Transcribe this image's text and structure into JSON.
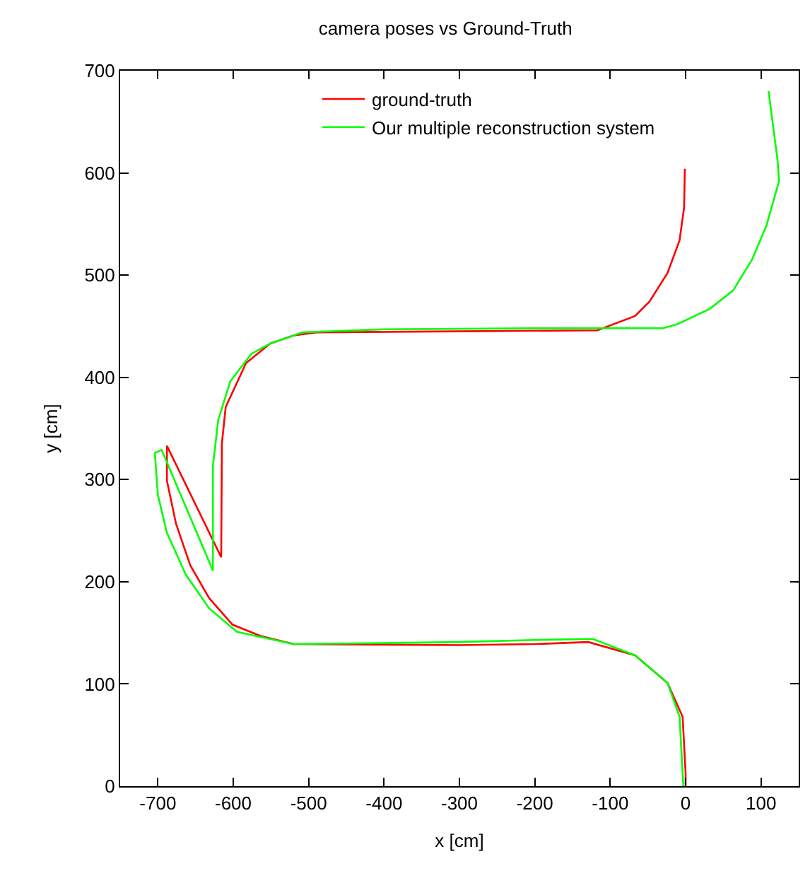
{
  "chart_data": {
    "type": "line",
    "title": "camera poses vs Ground-Truth",
    "xlabel": "x [cm]",
    "ylabel": "y [cm]",
    "xlim": [
      -750,
      150
    ],
    "xticks": [
      -700,
      -600,
      -500,
      -400,
      -300,
      -200,
      -100,
      0,
      100
    ],
    "ylim": [
      0,
      700
    ],
    "yticks": [
      0,
      100,
      200,
      300,
      400,
      500,
      600,
      700
    ],
    "legend": "top right",
    "marker": "none",
    "line_style": "solid",
    "series": [
      {
        "name": "ground-truth",
        "color": "#ff0000",
        "x": [
          -1,
          -2,
          -8,
          -24,
          -48,
          -67,
          -117,
          -300,
          -490,
          -520,
          -551,
          -583,
          -610,
          -615,
          -616,
          -688,
          -688,
          -676,
          -657,
          -632,
          -601,
          -564,
          -520,
          -300,
          -200,
          -129,
          -67,
          -24,
          -4,
          0,
          0
        ],
        "values": [
          604,
          566,
          534,
          502,
          474,
          460,
          446,
          445,
          444,
          441,
          433,
          414,
          371,
          336,
          224,
          333,
          299,
          257,
          216,
          184,
          158,
          147,
          139,
          138,
          139,
          141,
          128,
          101,
          68,
          13,
          0
        ]
      },
      {
        "name": "Our multiple reconstruction system",
        "color": "#00ff00",
        "x": [
          110,
          122,
          124,
          107,
          88,
          63,
          32,
          -11,
          -30,
          -200,
          -400,
          -508,
          -551,
          -576,
          -604,
          -620,
          -627,
          -627,
          -695,
          -704,
          -700,
          -688,
          -663,
          -632,
          -595,
          -520,
          -400,
          -300,
          -200,
          -123,
          -67,
          -24,
          -8,
          -4,
          -3
        ],
        "values": [
          680,
          612,
          592,
          548,
          515,
          485,
          467,
          452,
          448,
          448,
          447,
          444,
          433,
          423,
          396,
          358,
          313,
          211,
          329,
          326,
          285,
          248,
          207,
          174,
          151,
          139,
          140,
          141,
          143,
          144,
          128,
          101,
          68,
          13,
          0
        ]
      }
    ]
  }
}
